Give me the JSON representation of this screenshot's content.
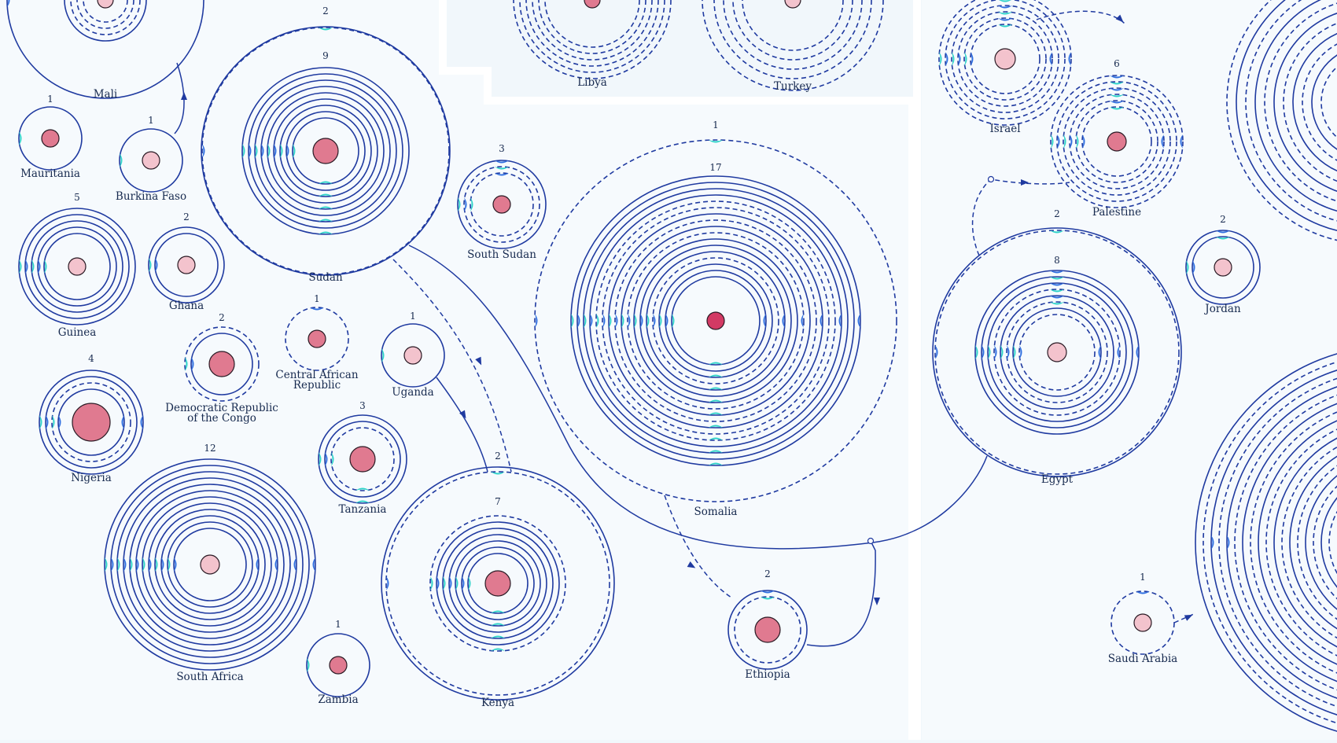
{
  "colors": {
    "background": "#f1f7fb",
    "panel": "#f6fafd",
    "line": "#1f3aa0",
    "accent_cyan": "#2ed3c9",
    "accent_blue": "#2f6fe0",
    "core_light": "#f3c3cd",
    "core_medium": "#e07a90",
    "core_dark": "#d33a64",
    "core_stroke": "#2a1a24"
  },
  "nodes": [
    {
      "id": "mali",
      "label": "Mali",
      "count": ""
    },
    {
      "id": "mauritania",
      "label": "Mauritania",
      "count": "1"
    },
    {
      "id": "burkina-faso",
      "label": "Burkina Faso",
      "count": "1"
    },
    {
      "id": "guinea",
      "label": "Guinea",
      "count": "5"
    },
    {
      "id": "ghana",
      "label": "Ghana",
      "count": "2"
    },
    {
      "id": "nigeria",
      "label": "Nigeria",
      "count": "4"
    },
    {
      "id": "drc",
      "label": "Democratic Republic of the Congo",
      "lines": [
        "Democratic Republic",
        "of the Congo"
      ],
      "count": "2"
    },
    {
      "id": "car",
      "label": "Central African Republic",
      "lines": [
        "Central African",
        "Republic"
      ],
      "count": "1"
    },
    {
      "id": "sudan",
      "label": "Sudan",
      "count": "9",
      "outer_count": "2"
    },
    {
      "id": "south-sudan",
      "label": "South Sudan",
      "count": "3"
    },
    {
      "id": "uganda",
      "label": "Uganda",
      "count": "1"
    },
    {
      "id": "tanzania",
      "label": "Tanzania",
      "count": "3"
    },
    {
      "id": "south-africa",
      "label": "South Africa",
      "count": "12"
    },
    {
      "id": "zambia",
      "label": "Zambia",
      "count": "1"
    },
    {
      "id": "kenya",
      "label": "Kenya",
      "count": "7",
      "outer_count": "2"
    },
    {
      "id": "somalia",
      "label": "Somalia",
      "count": "17",
      "outer_count": "1"
    },
    {
      "id": "ethiopia",
      "label": "Ethiopia",
      "count": "2"
    },
    {
      "id": "libya",
      "label": "Libya",
      "count": ""
    },
    {
      "id": "turkey",
      "label": "Turkey",
      "count": ""
    },
    {
      "id": "israel",
      "label": "Israel",
      "count": ""
    },
    {
      "id": "palestine",
      "label": "Palestine",
      "count": "6"
    },
    {
      "id": "egypt",
      "label": "Egypt",
      "count": "8",
      "outer_count": "2"
    },
    {
      "id": "jordan",
      "label": "Jordan",
      "count": "2"
    },
    {
      "id": "saudi-arabia",
      "label": "Saudi Arabia",
      "count": "1"
    }
  ]
}
